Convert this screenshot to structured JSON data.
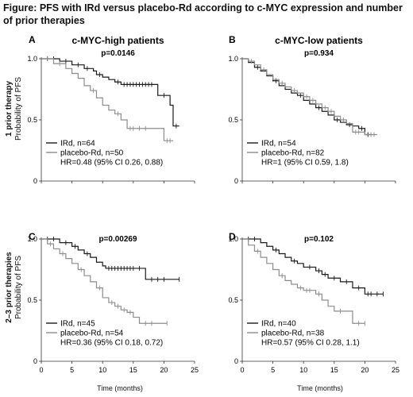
{
  "figure_title": "Figure: PFS with IRd versus placebo-Rd according to c-MYC expression and number of prior therapies",
  "row_labels": [
    {
      "group": "1 prior therapy",
      "axis": "Probability of PFS"
    },
    {
      "group": "2–3 prior therapies",
      "axis": "Probability of PFS"
    }
  ],
  "x_axis_title": "Time (months)",
  "colors": {
    "ird": "#1a1a1a",
    "placebo": "#8c8c8c"
  },
  "chart_data": [
    {
      "type": "line",
      "letter": "A",
      "title": "c-MYC-high patients",
      "pvalue": "p=0.0146",
      "xlim": [
        0,
        25
      ],
      "ylim": [
        0,
        1
      ],
      "x_ticks": [
        "0",
        "5",
        "10",
        "15",
        "20",
        "25"
      ],
      "y_ticks": [
        "0",
        "0.5",
        "1.0"
      ],
      "show_x_ticks": false,
      "legend": {
        "hr": "HR=0.48 (95% CI 0.26, 0.88)"
      },
      "series": [
        {
          "name": "IRd, n=64",
          "key": "ird",
          "steps": [
            [
              0,
              1.0
            ],
            [
              3,
              0.98
            ],
            [
              5,
              0.95
            ],
            [
              7,
              0.92
            ],
            [
              8.5,
              0.9
            ],
            [
              9,
              0.87
            ],
            [
              10,
              0.85
            ],
            [
              11,
              0.83
            ],
            [
              12,
              0.81
            ],
            [
              13,
              0.79
            ],
            [
              19,
              0.7
            ],
            [
              21,
              0.62
            ],
            [
              21.5,
              0.45
            ],
            [
              22.5,
              0.45
            ]
          ],
          "censor": [
            [
              1,
              1.0
            ],
            [
              2,
              1.0
            ],
            [
              4,
              0.98
            ],
            [
              6,
              0.95
            ],
            [
              7.5,
              0.92
            ],
            [
              9.5,
              0.87
            ],
            [
              12.5,
              0.81
            ],
            [
              13.5,
              0.79
            ],
            [
              14,
              0.79
            ],
            [
              14.5,
              0.79
            ],
            [
              15,
              0.79
            ],
            [
              15.5,
              0.79
            ],
            [
              16,
              0.79
            ],
            [
              16.5,
              0.79
            ],
            [
              17,
              0.79
            ],
            [
              17.5,
              0.79
            ],
            [
              18,
              0.79
            ],
            [
              20,
              0.7
            ],
            [
              22,
              0.45
            ]
          ]
        },
        {
          "name": "placebo-Rd, n=50",
          "key": "placebo",
          "steps": [
            [
              0,
              1.0
            ],
            [
              2,
              0.96
            ],
            [
              4,
              0.92
            ],
            [
              5,
              0.88
            ],
            [
              6,
              0.84
            ],
            [
              7,
              0.78
            ],
            [
              8,
              0.74
            ],
            [
              9,
              0.68
            ],
            [
              10,
              0.62
            ],
            [
              11,
              0.58
            ],
            [
              12,
              0.55
            ],
            [
              13,
              0.5
            ],
            [
              14,
              0.43
            ],
            [
              19,
              0.43
            ],
            [
              20,
              0.33
            ],
            [
              21.5,
              0.33
            ]
          ],
          "censor": [
            [
              1,
              1.0
            ],
            [
              3,
              0.96
            ],
            [
              8.5,
              0.74
            ],
            [
              12.5,
              0.55
            ],
            [
              14.5,
              0.43
            ],
            [
              15,
              0.43
            ],
            [
              16,
              0.43
            ],
            [
              17,
              0.43
            ],
            [
              20.5,
              0.33
            ],
            [
              21,
              0.33
            ]
          ]
        }
      ]
    },
    {
      "type": "line",
      "letter": "B",
      "title": "c-MYC-low patients",
      "pvalue": "p=0.934",
      "xlim": [
        0,
        25
      ],
      "ylim": [
        0,
        1
      ],
      "x_ticks": [
        "0",
        "5",
        "10",
        "15",
        "20",
        "25"
      ],
      "y_ticks": [
        "0",
        "0.5",
        "1.0"
      ],
      "show_x_ticks": false,
      "legend": {
        "hr": "HR=1 (95% CI 0.59, 1.8)"
      },
      "series": [
        {
          "name": "IRd, n=54",
          "key": "ird",
          "steps": [
            [
              0,
              1.0
            ],
            [
              1,
              0.97
            ],
            [
              2,
              0.93
            ],
            [
              3,
              0.9
            ],
            [
              4,
              0.86
            ],
            [
              5,
              0.82
            ],
            [
              6,
              0.78
            ],
            [
              7,
              0.75
            ],
            [
              8,
              0.72
            ],
            [
              9,
              0.7
            ],
            [
              10,
              0.66
            ],
            [
              11,
              0.63
            ],
            [
              12,
              0.6
            ],
            [
              13,
              0.57
            ],
            [
              14,
              0.54
            ],
            [
              15,
              0.5
            ],
            [
              16,
              0.48
            ],
            [
              17,
              0.46
            ],
            [
              18,
              0.45
            ],
            [
              19,
              0.43
            ],
            [
              20,
              0.38
            ],
            [
              21,
              0.38
            ]
          ],
          "censor": [
            [
              2.5,
              0.93
            ],
            [
              5.5,
              0.82
            ],
            [
              9.5,
              0.7
            ],
            [
              12.5,
              0.6
            ],
            [
              15.5,
              0.5
            ],
            [
              17.5,
              0.46
            ],
            [
              19.5,
              0.43
            ],
            [
              20.5,
              0.38
            ]
          ]
        },
        {
          "name": "placebo-Rd, n=82",
          "key": "placebo",
          "steps": [
            [
              0,
              1.0
            ],
            [
              1,
              0.98
            ],
            [
              2,
              0.95
            ],
            [
              3,
              0.91
            ],
            [
              4,
              0.87
            ],
            [
              5,
              0.83
            ],
            [
              6,
              0.8
            ],
            [
              7,
              0.77
            ],
            [
              8,
              0.74
            ],
            [
              9,
              0.72
            ],
            [
              10,
              0.69
            ],
            [
              11,
              0.66
            ],
            [
              12,
              0.63
            ],
            [
              13,
              0.6
            ],
            [
              14,
              0.57
            ],
            [
              15,
              0.53
            ],
            [
              16,
              0.5
            ],
            [
              17,
              0.47
            ],
            [
              18,
              0.4
            ],
            [
              20,
              0.38
            ],
            [
              22,
              0.38
            ]
          ],
          "censor": [
            [
              1.5,
              0.98
            ],
            [
              3.5,
              0.91
            ],
            [
              6.5,
              0.8
            ],
            [
              8.5,
              0.74
            ],
            [
              10.5,
              0.69
            ],
            [
              11.5,
              0.66
            ],
            [
              13.5,
              0.6
            ],
            [
              14.5,
              0.57
            ],
            [
              16.5,
              0.5
            ],
            [
              18.5,
              0.4
            ],
            [
              19,
              0.4
            ],
            [
              21,
              0.38
            ],
            [
              21.5,
              0.38
            ]
          ]
        }
      ]
    },
    {
      "type": "line",
      "letter": "C",
      "title": "",
      "pvalue": "p=0.00269",
      "xlim": [
        0,
        25
      ],
      "ylim": [
        0,
        1
      ],
      "x_ticks": [
        "0",
        "5",
        "10",
        "15",
        "20",
        "25"
      ],
      "y_ticks": [
        "0",
        "0.5",
        "1.0"
      ],
      "show_x_ticks": true,
      "legend": {
        "hr": "HR=0.36 (95% CI 0.18, 0.72)"
      },
      "series": [
        {
          "name": "IRd, n=45",
          "key": "ird",
          "steps": [
            [
              0,
              1.0
            ],
            [
              3,
              0.97
            ],
            [
              5,
              0.94
            ],
            [
              6,
              0.91
            ],
            [
              7,
              0.88
            ],
            [
              8,
              0.85
            ],
            [
              9,
              0.81
            ],
            [
              10,
              0.78
            ],
            [
              10.5,
              0.76
            ],
            [
              17,
              0.67
            ],
            [
              22.5,
              0.67
            ]
          ],
          "censor": [
            [
              1,
              1.0
            ],
            [
              2,
              1.0
            ],
            [
              4,
              0.97
            ],
            [
              5.5,
              0.94
            ],
            [
              7.5,
              0.88
            ],
            [
              11,
              0.76
            ],
            [
              11.5,
              0.76
            ],
            [
              12,
              0.76
            ],
            [
              12.5,
              0.76
            ],
            [
              13,
              0.76
            ],
            [
              13.5,
              0.76
            ],
            [
              14,
              0.76
            ],
            [
              14.5,
              0.76
            ],
            [
              15,
              0.76
            ],
            [
              16,
              0.76
            ],
            [
              18,
              0.67
            ],
            [
              19,
              0.67
            ],
            [
              20,
              0.67
            ],
            [
              22.5,
              0.67
            ]
          ]
        },
        {
          "name": "placebo-Rd, n=54",
          "key": "placebo",
          "steps": [
            [
              0,
              1.0
            ],
            [
              1,
              0.96
            ],
            [
              2,
              0.92
            ],
            [
              3,
              0.88
            ],
            [
              4,
              0.84
            ],
            [
              5,
              0.8
            ],
            [
              6,
              0.75
            ],
            [
              7,
              0.7
            ],
            [
              8,
              0.65
            ],
            [
              9,
              0.6
            ],
            [
              10,
              0.52
            ],
            [
              11,
              0.48
            ],
            [
              12,
              0.45
            ],
            [
              13,
              0.42
            ],
            [
              14,
              0.4
            ],
            [
              15,
              0.36
            ],
            [
              16,
              0.31
            ],
            [
              20.5,
              0.31
            ]
          ],
          "censor": [
            [
              1.5,
              0.96
            ],
            [
              3.5,
              0.88
            ],
            [
              6.5,
              0.75
            ],
            [
              9.5,
              0.6
            ],
            [
              11.5,
              0.48
            ],
            [
              12.5,
              0.45
            ],
            [
              13.5,
              0.42
            ],
            [
              14.5,
              0.4
            ],
            [
              17,
              0.31
            ],
            [
              18,
              0.31
            ],
            [
              20.5,
              0.31
            ]
          ]
        }
      ]
    },
    {
      "type": "line",
      "letter": "D",
      "title": "",
      "pvalue": "p=0.102",
      "xlim": [
        0,
        25
      ],
      "ylim": [
        0,
        1
      ],
      "x_ticks": [
        "0",
        "5",
        "10",
        "15",
        "20",
        "25"
      ],
      "y_ticks": [
        "0",
        "0.5",
        "1.0"
      ],
      "show_x_ticks": true,
      "legend": {
        "hr": "HR=0.57 (95% CI 0.28, 1.1)"
      },
      "series": [
        {
          "name": "IRd, n=40",
          "key": "ird",
          "steps": [
            [
              0,
              1.0
            ],
            [
              3,
              0.97
            ],
            [
              4,
              0.94
            ],
            [
              5,
              0.91
            ],
            [
              6,
              0.88
            ],
            [
              7,
              0.85
            ],
            [
              8,
              0.82
            ],
            [
              9,
              0.8
            ],
            [
              10,
              0.77
            ],
            [
              12,
              0.74
            ],
            [
              13,
              0.71
            ],
            [
              14,
              0.68
            ],
            [
              16,
              0.65
            ],
            [
              18,
              0.6
            ],
            [
              20,
              0.55
            ],
            [
              23,
              0.55
            ]
          ],
          "censor": [
            [
              1,
              1.0
            ],
            [
              2,
              1.0
            ],
            [
              5.5,
              0.91
            ],
            [
              8.5,
              0.82
            ],
            [
              11,
              0.77
            ],
            [
              12.5,
              0.74
            ],
            [
              13.5,
              0.71
            ],
            [
              15,
              0.68
            ],
            [
              17,
              0.65
            ],
            [
              19,
              0.6
            ],
            [
              20.5,
              0.55
            ],
            [
              21,
              0.55
            ],
            [
              22,
              0.55
            ],
            [
              23,
              0.55
            ]
          ]
        },
        {
          "name": "placebo-Rd, n=38",
          "key": "placebo",
          "steps": [
            [
              0,
              1.0
            ],
            [
              1,
              0.95
            ],
            [
              2,
              0.9
            ],
            [
              3,
              0.85
            ],
            [
              4,
              0.8
            ],
            [
              5,
              0.75
            ],
            [
              6,
              0.7
            ],
            [
              7,
              0.66
            ],
            [
              8,
              0.63
            ],
            [
              9,
              0.6
            ],
            [
              10,
              0.58
            ],
            [
              12,
              0.55
            ],
            [
              13,
              0.5
            ],
            [
              14,
              0.45
            ],
            [
              15,
              0.41
            ],
            [
              18,
              0.31
            ],
            [
              20,
              0.31
            ]
          ],
          "censor": [
            [
              2.5,
              0.9
            ],
            [
              6.5,
              0.7
            ],
            [
              9.5,
              0.6
            ],
            [
              10.5,
              0.58
            ],
            [
              11,
              0.58
            ],
            [
              12.5,
              0.55
            ],
            [
              16,
              0.41
            ],
            [
              19,
              0.31
            ],
            [
              20,
              0.31
            ]
          ]
        }
      ]
    }
  ]
}
